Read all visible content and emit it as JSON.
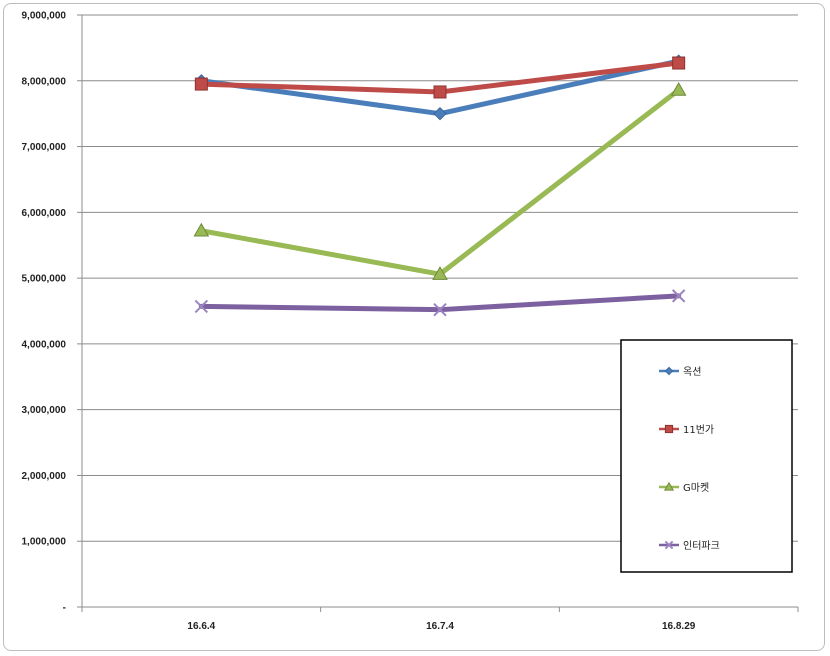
{
  "chart_data": {
    "type": "line",
    "title": "",
    "xlabel": "",
    "ylabel": "",
    "categories": [
      "16.6.4",
      "16.7.4",
      "16.8.29"
    ],
    "ylim": [
      0,
      9000000
    ],
    "yticks": [
      0,
      1000000,
      2000000,
      3000000,
      4000000,
      5000000,
      6000000,
      7000000,
      8000000,
      9000000
    ],
    "ytick_labels": [
      "-",
      "1,000,000",
      "2,000,000",
      "3,000,000",
      "4,000,000",
      "5,000,000",
      "6,000,000",
      "7,000,000",
      "8,000,000",
      "9,000,000"
    ],
    "grid": true,
    "legend_position": "right",
    "series": [
      {
        "name": "옥션",
        "values": [
          8000000,
          7500000,
          8300000
        ],
        "color": "#4a7ebb",
        "marker": "diamond"
      },
      {
        "name": "11번가",
        "values": [
          7950000,
          7830000,
          8270000
        ],
        "color": "#be4b48",
        "marker": "square"
      },
      {
        "name": "G마켓",
        "values": [
          5720000,
          5060000,
          7860000
        ],
        "color": "#98b954",
        "marker": "triangle"
      },
      {
        "name": "인터파크",
        "values": [
          4570000,
          4520000,
          4730000
        ],
        "color": "#7d60a0",
        "marker": "x"
      }
    ]
  }
}
